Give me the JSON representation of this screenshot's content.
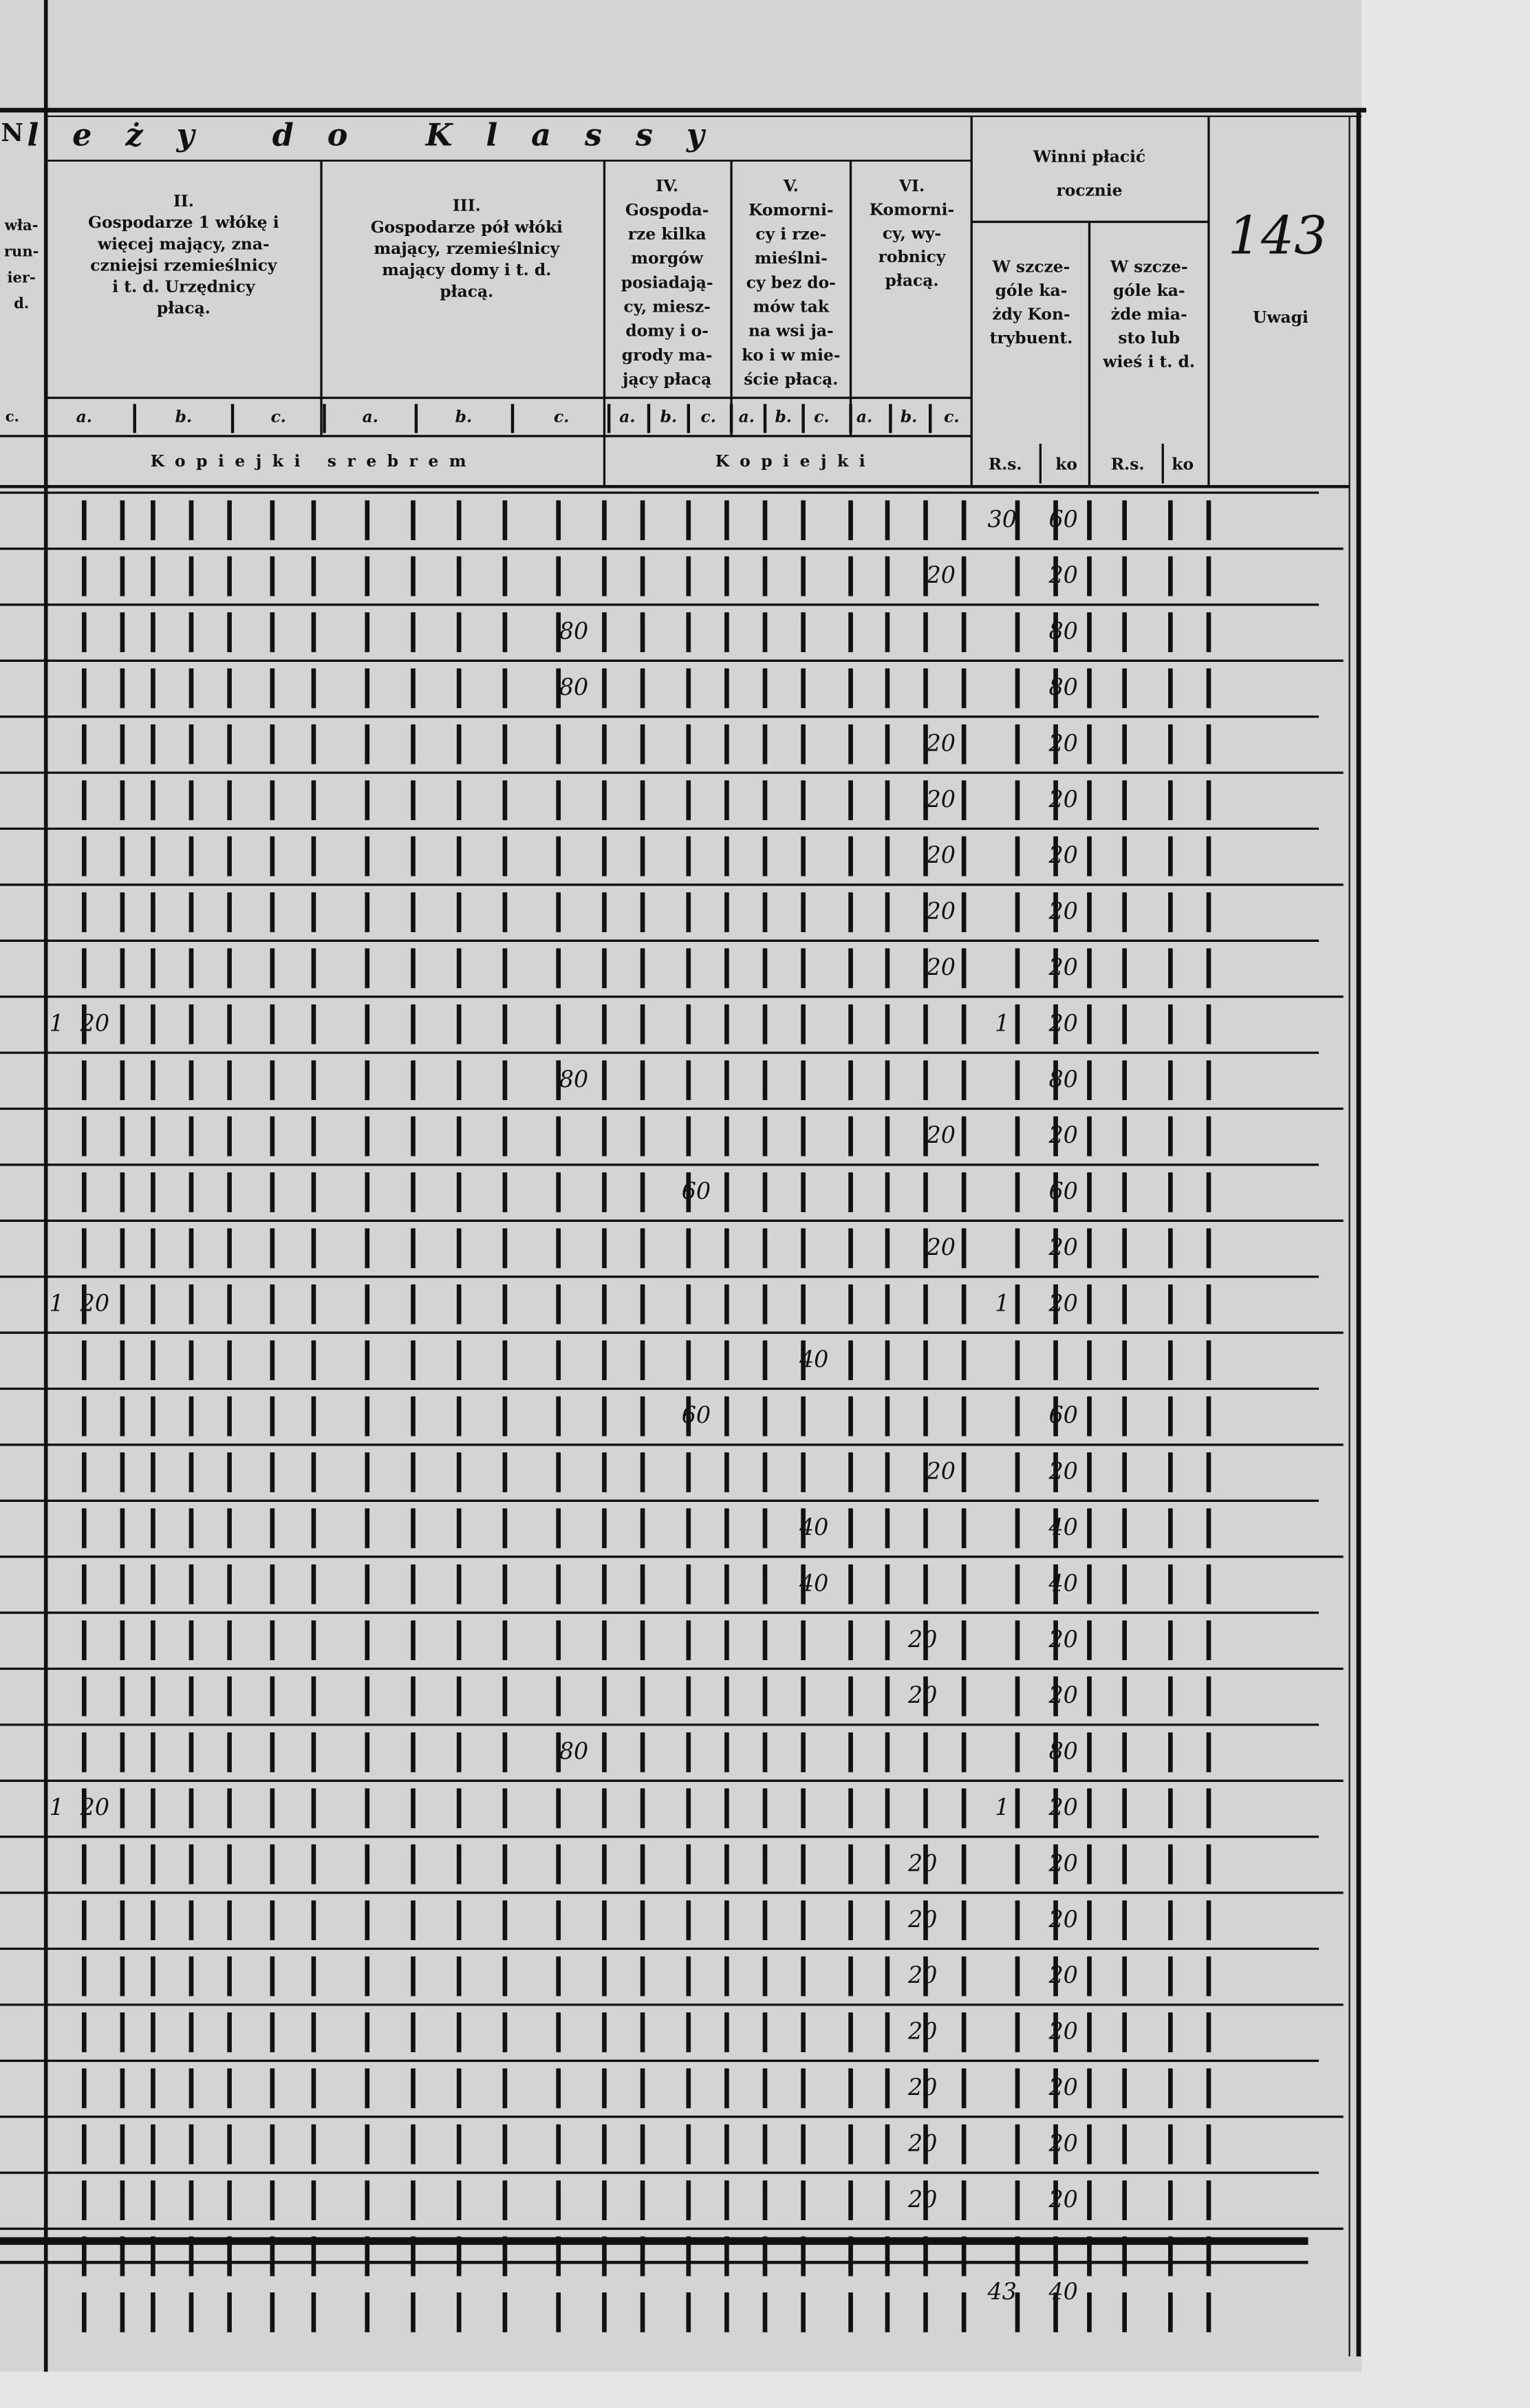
{
  "header": {
    "left_fragment": "N",
    "left_lines": [
      "wła-",
      "run-",
      "ier-",
      "d."
    ],
    "left_sub": "c.",
    "title": "leży do Klassy",
    "page_number": "143"
  },
  "columns": {
    "class_2": {
      "lines": [
        "II.",
        "Gospodarze 1 włókę i",
        "więcej mający, zna-",
        "czniejsi rzemieślnicy",
        "i t. d. Urzędnicy",
        "płacą."
      ]
    },
    "class_3": {
      "lines": [
        "III.",
        "Gospodarze pół włóki",
        "mający, rzemieślnicy",
        "mający domy i t. d.",
        "płacą."
      ]
    },
    "class_4": {
      "lines": [
        "IV.",
        "Gospoda-",
        "rze kilka",
        "morgów",
        "posiadają-",
        "cy, miesz-",
        "domy i o-",
        "grody ma-",
        "jący płacą"
      ]
    },
    "class_5": {
      "lines": [
        "V.",
        "Komorni-",
        "cy i rze-",
        "mieślni-",
        "cy bez do-",
        "mów tak",
        "na wsi ja-",
        "ko i w mie-",
        "ście płacą."
      ]
    },
    "class_6": {
      "lines": [
        "VI.",
        "Komorni-",
        "cy, wy-",
        "robnicy",
        "płacą."
      ]
    },
    "winni": {
      "lines": [
        "Winni płacić",
        "rocznie"
      ]
    },
    "kontrybuent": {
      "lines": [
        "W szcze-",
        "góle ka-",
        "żdy Kon-",
        "trybuent."
      ]
    },
    "miasto": {
      "lines": [
        "W szcze-",
        "góle ka-",
        "żde mia-",
        "sto lub",
        "wieś i t. d."
      ]
    },
    "uwagi": "Uwagi"
  },
  "subcolumn_labels": [
    "a.",
    "b.",
    "c.",
    "a.",
    "b.",
    "c.",
    "a.",
    "b.",
    "c.",
    "a.",
    "b.",
    "c.",
    "a.",
    "b.",
    "c."
  ],
  "units": [
    "Kopiejki srebrem",
    "Kopiejki"
  ],
  "payment_units": [
    "R.s.",
    "ko",
    "R.s.",
    "ko"
  ],
  "rows": [
    {
      "total_rs": "30",
      "total_ko": "60"
    },
    {
      "VI_c": "20",
      "total_ko": "20"
    },
    {
      "III_c": "80",
      "total_ko": "80"
    },
    {
      "III_c": "80",
      "total_ko": "80"
    },
    {
      "VI_c": "20",
      "total_ko": "20"
    },
    {
      "VI_c": "20",
      "total_ko": "20"
    },
    {
      "VI_c": "20",
      "total_ko": "20"
    },
    {
      "VI_c": "20",
      "total_ko": "20"
    },
    {
      "VI_c": "20",
      "total_ko": "20"
    },
    {
      "II_rs": "1",
      "II_a": "20",
      "total_rs": "1",
      "total_ko": "20"
    },
    {
      "III_c": "80",
      "total_ko": "80"
    },
    {
      "VI_c": "20",
      "total_ko": "20"
    },
    {
      "IV_b": "60",
      "total_ko": "60"
    },
    {
      "VI_c": "20",
      "total_ko": "20"
    },
    {
      "II_rs": "1",
      "II_a": "20",
      "total_rs": "1",
      "total_ko": "20"
    },
    {
      "V_c": "40"
    },
    {
      "IV_b": "60",
      "total_ko": "60"
    },
    {
      "VI_c": "20",
      "total_ko": "20"
    },
    {
      "V_c": "40",
      "total_ko": "40"
    },
    {
      "V_c": "40",
      "total_ko": "40"
    },
    {
      "VI_b": "20",
      "total_ko": "20"
    },
    {
      "VI_b": "20",
      "total_ko": "20"
    },
    {
      "III_c": "80",
      "total_ko": "80"
    },
    {
      "II_rs": "1",
      "II_a": "20",
      "total_rs": "1",
      "total_ko": "20"
    },
    {
      "VI_b": "20",
      "total_ko": "20"
    },
    {
      "VI_b": "20",
      "total_ko": "20"
    },
    {
      "VI_b": "20",
      "total_ko": "20"
    },
    {
      "VI_b": "20",
      "total_ko": "20"
    },
    {
      "VI_b": "20",
      "total_ko": "20"
    },
    {
      "VI_b": "20",
      "total_ko": "20"
    },
    {
      "VI_b": "20",
      "total_ko": "20"
    }
  ],
  "total": {
    "rs": "43",
    "ko": "40"
  }
}
